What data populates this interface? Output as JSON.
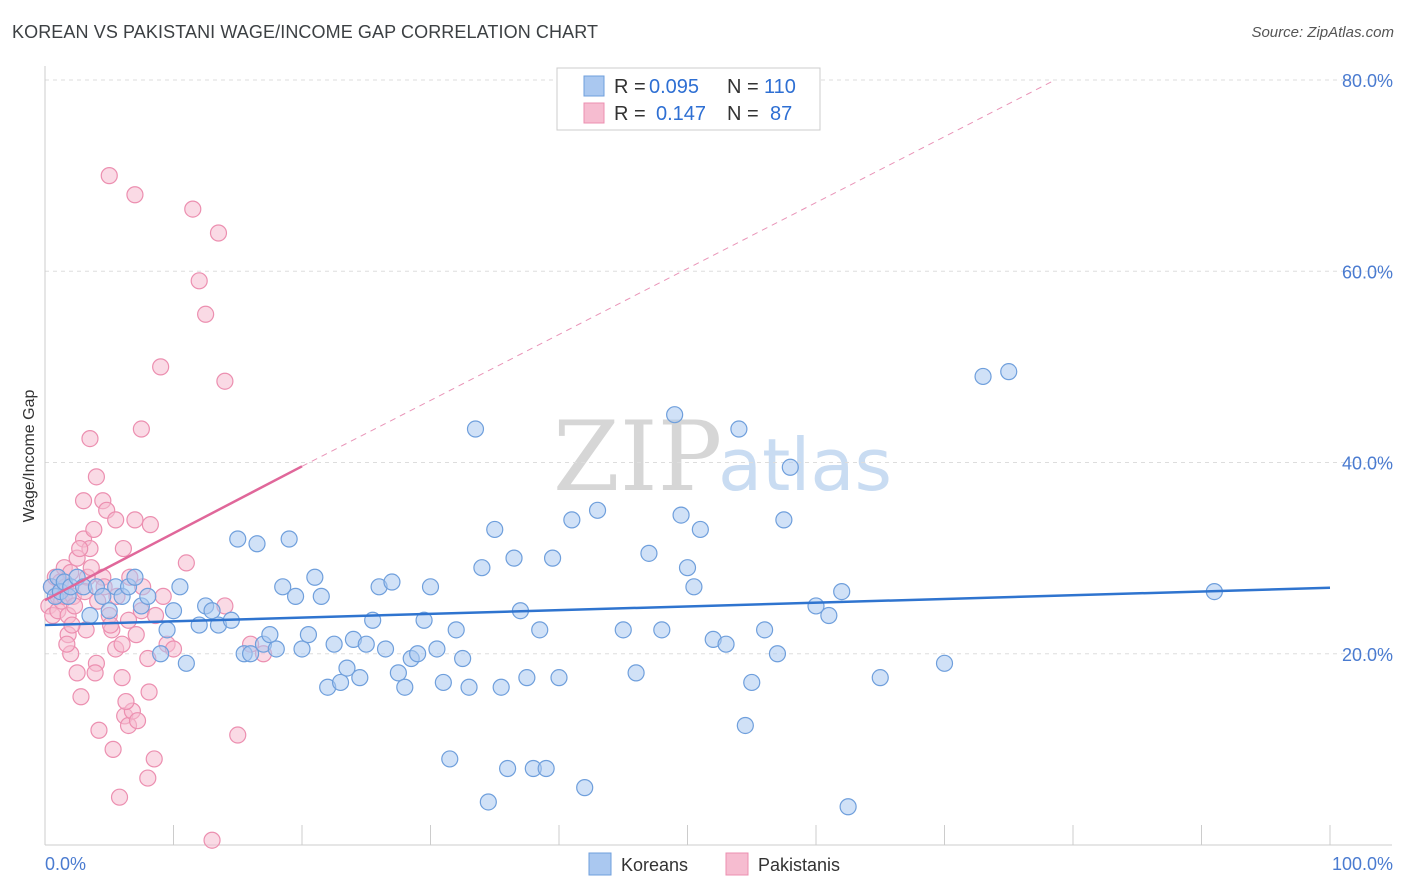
{
  "title": "KOREAN VS PAKISTANI WAGE/INCOME GAP CORRELATION CHART",
  "source": "Source: ZipAtlas.com",
  "watermark": {
    "part1": "ZIP",
    "part2": "atlas"
  },
  "legend": {
    "koreans": {
      "r_label": "R =",
      "r_value": "0.095",
      "n_label": "N =",
      "n_value": "110"
    },
    "pakistanis": {
      "r_label": "R =",
      "r_value": "0.147",
      "n_label": "N =",
      "n_value": "87"
    }
  },
  "bottom_legend": {
    "koreans": "Koreans",
    "pakistanis": "Pakistanis"
  },
  "colors": {
    "koreans_fill": "#aac8f0",
    "koreans_stroke": "#6f9fdc",
    "koreans_line": "#2f74cf",
    "pakistanis_fill": "#f6bcd0",
    "pakistanis_stroke": "#ec8fb0",
    "pakistanis_line": "#e0679a",
    "grid": "#dddddd",
    "axis_text": "#4a7bd0"
  },
  "chart_data": {
    "type": "scatter",
    "title": "KOREAN VS PAKISTANI WAGE/INCOME GAP CORRELATION CHART",
    "xlabel": "",
    "ylabel": "Wage/Income Gap",
    "xlim": [
      0,
      100
    ],
    "ylim": [
      0,
      80
    ],
    "x_tick_labels": [
      "0.0%",
      "100.0%"
    ],
    "y_ticks": [
      20,
      40,
      60,
      80
    ],
    "y_tick_labels": [
      "20.0%",
      "40.0%",
      "60.0%",
      "80.0%"
    ],
    "series": [
      {
        "name": "Koreans",
        "r": 0.095,
        "n": 110,
        "trend": {
          "x": [
            0,
            100
          ],
          "y": [
            23.0,
            26.9
          ]
        },
        "points": [
          [
            0.5,
            27
          ],
          [
            0.8,
            26
          ],
          [
            1,
            28
          ],
          [
            1.2,
            26.5
          ],
          [
            1.5,
            27.5
          ],
          [
            1.8,
            26
          ],
          [
            2,
            27
          ],
          [
            2.5,
            28
          ],
          [
            3,
            27
          ],
          [
            3.5,
            24
          ],
          [
            4,
            27
          ],
          [
            4.5,
            26
          ],
          [
            5,
            24.5
          ],
          [
            5.5,
            27
          ],
          [
            6,
            26
          ],
          [
            6.5,
            27
          ],
          [
            7,
            28
          ],
          [
            7.5,
            25
          ],
          [
            8,
            26
          ],
          [
            9,
            20
          ],
          [
            9.5,
            22.5
          ],
          [
            10,
            24.5
          ],
          [
            10.5,
            27
          ],
          [
            11,
            19
          ],
          [
            12,
            23
          ],
          [
            12.5,
            25
          ],
          [
            13,
            24.5
          ],
          [
            13.5,
            23
          ],
          [
            14.5,
            23.5
          ],
          [
            15,
            32
          ],
          [
            15.5,
            20
          ],
          [
            16,
            20
          ],
          [
            16.5,
            31.5
          ],
          [
            17,
            21
          ],
          [
            17.5,
            22
          ],
          [
            18,
            20.5
          ],
          [
            18.5,
            27
          ],
          [
            19,
            32
          ],
          [
            19.5,
            26
          ],
          [
            20,
            20.5
          ],
          [
            20.5,
            22
          ],
          [
            21,
            28
          ],
          [
            21.5,
            26
          ],
          [
            22,
            16.5
          ],
          [
            22.5,
            21
          ],
          [
            23,
            17
          ],
          [
            23.5,
            18.5
          ],
          [
            24,
            21.5
          ],
          [
            24.5,
            17.5
          ],
          [
            25,
            21
          ],
          [
            25.5,
            23.5
          ],
          [
            26,
            27
          ],
          [
            26.5,
            20.5
          ],
          [
            27,
            27.5
          ],
          [
            27.5,
            18
          ],
          [
            28,
            16.5
          ],
          [
            28.5,
            19.5
          ],
          [
            29,
            20
          ],
          [
            29.5,
            23.5
          ],
          [
            30,
            27
          ],
          [
            30.5,
            20.5
          ],
          [
            31,
            17
          ],
          [
            31.5,
            9
          ],
          [
            32,
            22.5
          ],
          [
            32.5,
            19.5
          ],
          [
            33,
            16.5
          ],
          [
            33.5,
            43.5
          ],
          [
            34,
            29
          ],
          [
            34.5,
            4.5
          ],
          [
            35,
            33
          ],
          [
            35.5,
            16.5
          ],
          [
            36,
            8
          ],
          [
            36.5,
            30
          ],
          [
            37,
            24.5
          ],
          [
            37.5,
            17.5
          ],
          [
            38,
            8
          ],
          [
            38.5,
            22.5
          ],
          [
            39,
            8
          ],
          [
            39.5,
            30
          ],
          [
            40,
            17.5
          ],
          [
            41,
            34
          ],
          [
            42,
            6
          ],
          [
            43,
            35
          ],
          [
            45,
            22.5
          ],
          [
            46,
            18
          ],
          [
            47,
            30.5
          ],
          [
            48,
            22.5
          ],
          [
            49,
            45
          ],
          [
            49.5,
            34.5
          ],
          [
            50,
            29
          ],
          [
            50.5,
            27
          ],
          [
            51,
            33
          ],
          [
            52,
            21.5
          ],
          [
            53,
            21
          ],
          [
            54,
            43.5
          ],
          [
            54.5,
            12.5
          ],
          [
            55,
            17
          ],
          [
            56,
            22.5
          ],
          [
            57,
            20
          ],
          [
            57.5,
            34
          ],
          [
            58,
            39.5
          ],
          [
            60,
            25
          ],
          [
            61,
            24
          ],
          [
            62,
            26.5
          ],
          [
            62.5,
            4
          ],
          [
            65,
            17.5
          ],
          [
            70,
            19
          ],
          [
            73,
            49
          ],
          [
            75,
            49.5
          ],
          [
            91,
            26.5
          ]
        ]
      },
      {
        "name": "Pakistanis",
        "r": 0.147,
        "n": 87,
        "trend": {
          "x": [
            0,
            20
          ],
          "y": [
            25.6,
            39.6
          ]
        },
        "trend_extension": {
          "x": [
            20,
            78.6
          ],
          "y": [
            39.6,
            80
          ]
        },
        "points": [
          [
            0.3,
            25
          ],
          [
            0.5,
            27
          ],
          [
            0.6,
            24
          ],
          [
            0.8,
            28
          ],
          [
            1,
            26
          ],
          [
            1,
            24.5
          ],
          [
            1.2,
            27.5
          ],
          [
            1.3,
            25.5
          ],
          [
            1.5,
            29
          ],
          [
            1.5,
            26
          ],
          [
            1.6,
            27
          ],
          [
            1.8,
            22
          ],
          [
            1.8,
            24
          ],
          [
            2,
            28.5
          ],
          [
            2,
            20
          ],
          [
            2.2,
            26
          ],
          [
            2.3,
            25
          ],
          [
            2.5,
            30
          ],
          [
            2.5,
            18
          ],
          [
            2.8,
            15.5
          ],
          [
            3,
            32
          ],
          [
            3,
            36
          ],
          [
            3.2,
            22.5
          ],
          [
            3.3,
            28
          ],
          [
            3.5,
            42.5
          ],
          [
            3.5,
            31
          ],
          [
            3.8,
            33
          ],
          [
            4,
            38.5
          ],
          [
            4,
            19
          ],
          [
            4.2,
            12
          ],
          [
            4.5,
            36
          ],
          [
            4.5,
            28
          ],
          [
            4.8,
            35
          ],
          [
            5,
            70
          ],
          [
            5,
            24
          ],
          [
            5.2,
            22.5
          ],
          [
            5.3,
            10
          ],
          [
            5.5,
            20.5
          ],
          [
            5.5,
            34
          ],
          [
            5.8,
            5
          ],
          [
            6,
            21
          ],
          [
            6,
            17.5
          ],
          [
            6.2,
            13.5
          ],
          [
            6.5,
            23.5
          ],
          [
            6.5,
            12.5
          ],
          [
            6.8,
            14
          ],
          [
            7,
            68
          ],
          [
            7,
            34
          ],
          [
            7.2,
            13
          ],
          [
            7.5,
            24.5
          ],
          [
            7.5,
            43.5
          ],
          [
            8,
            19.5
          ],
          [
            8,
            7
          ],
          [
            8.2,
            33.5
          ],
          [
            8.5,
            9
          ],
          [
            9,
            50
          ],
          [
            9.5,
            21
          ],
          [
            10,
            20.5
          ],
          [
            11,
            29.5
          ],
          [
            11.5,
            66.5
          ],
          [
            12,
            59
          ],
          [
            12.5,
            55.5
          ],
          [
            13,
            0.5
          ],
          [
            13.5,
            64
          ],
          [
            14,
            48.5
          ],
          [
            14,
            25
          ],
          [
            15,
            11.5
          ],
          [
            16,
            21
          ],
          [
            17,
            20
          ],
          [
            2.7,
            31
          ],
          [
            3.1,
            26.5
          ],
          [
            3.6,
            29
          ],
          [
            4.1,
            25.5
          ],
          [
            4.6,
            27
          ],
          [
            5.1,
            23
          ],
          [
            5.6,
            26
          ],
          [
            6.1,
            31
          ],
          [
            6.6,
            28
          ],
          [
            7.1,
            22
          ],
          [
            7.6,
            27
          ],
          [
            8.1,
            16
          ],
          [
            8.6,
            24
          ],
          [
            2.1,
            23
          ],
          [
            1.7,
            21
          ],
          [
            3.9,
            18
          ],
          [
            6.3,
            15
          ],
          [
            9.2,
            26
          ]
        ]
      }
    ]
  }
}
